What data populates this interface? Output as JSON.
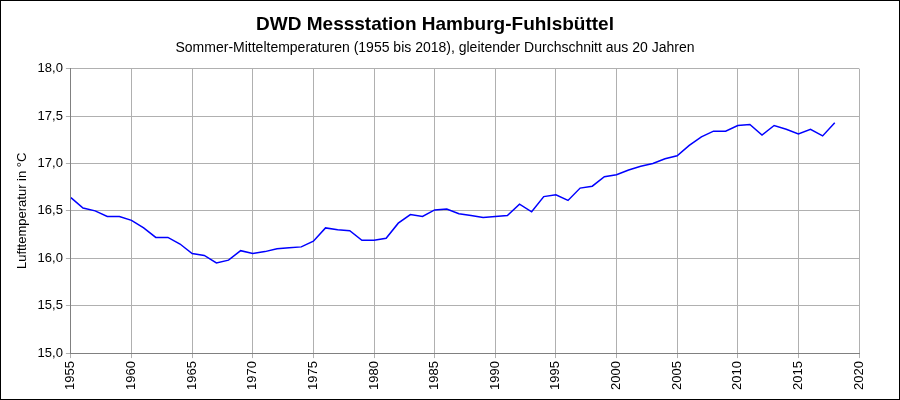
{
  "chart_data": {
    "type": "line",
    "title": "DWD Messstation Hamburg-Fuhlsbüttel",
    "subtitle": "Sommer-Mitteltemperaturen (1955 bis 2018), gleitender Durchschnitt aus 20 Jahren",
    "y_label": "Lufttemperatur in °C",
    "x": [
      1955,
      1956,
      1957,
      1958,
      1959,
      1960,
      1961,
      1962,
      1963,
      1964,
      1965,
      1966,
      1967,
      1968,
      1969,
      1970,
      1971,
      1972,
      1973,
      1974,
      1975,
      1976,
      1977,
      1978,
      1979,
      1980,
      1981,
      1982,
      1983,
      1984,
      1985,
      1986,
      1987,
      1988,
      1989,
      1990,
      1991,
      1992,
      1993,
      1994,
      1995,
      1996,
      1997,
      1998,
      1999,
      2000,
      2001,
      2002,
      2003,
      2004,
      2005,
      2006,
      2007,
      2008,
      2009,
      2010,
      2011,
      2012,
      2013,
      2014,
      2015,
      2016,
      2017,
      2018
    ],
    "values": [
      16.64,
      16.53,
      16.5,
      16.44,
      16.44,
      16.4,
      16.32,
      16.22,
      16.22,
      16.15,
      16.05,
      16.03,
      15.95,
      15.98,
      16.08,
      16.05,
      16.07,
      16.1,
      16.11,
      16.12,
      16.18,
      16.32,
      16.3,
      16.29,
      16.19,
      16.19,
      16.21,
      16.37,
      16.46,
      16.44,
      16.51,
      16.52,
      16.47,
      16.45,
      16.43,
      16.44,
      16.45,
      16.57,
      16.49,
      16.65,
      16.67,
      16.61,
      16.74,
      16.76,
      16.86,
      16.88,
      16.93,
      16.97,
      17.0,
      17.05,
      17.08,
      17.19,
      17.28,
      17.34,
      17.34,
      17.4,
      17.41,
      17.3,
      17.4,
      17.36,
      17.31,
      17.36,
      17.29,
      17.43
    ],
    "color": "#0000ff",
    "xlim": [
      1955,
      2020
    ],
    "xticks": [
      1955,
      1960,
      1965,
      1970,
      1975,
      1980,
      1985,
      1990,
      1995,
      2000,
      2005,
      2010,
      2015,
      2020
    ],
    "ylim": [
      15,
      18
    ],
    "yticks": [
      {
        "value": 15,
        "label": "15,0"
      },
      {
        "value": 15.5,
        "label": "15,5"
      },
      {
        "value": 16,
        "label": "16,0"
      },
      {
        "value": 16.5,
        "label": "16,5"
      },
      {
        "value": 17,
        "label": "17,0"
      },
      {
        "value": 17.5,
        "label": "17,5"
      },
      {
        "value": 18,
        "label": "18,0"
      }
    ],
    "grid": true
  }
}
